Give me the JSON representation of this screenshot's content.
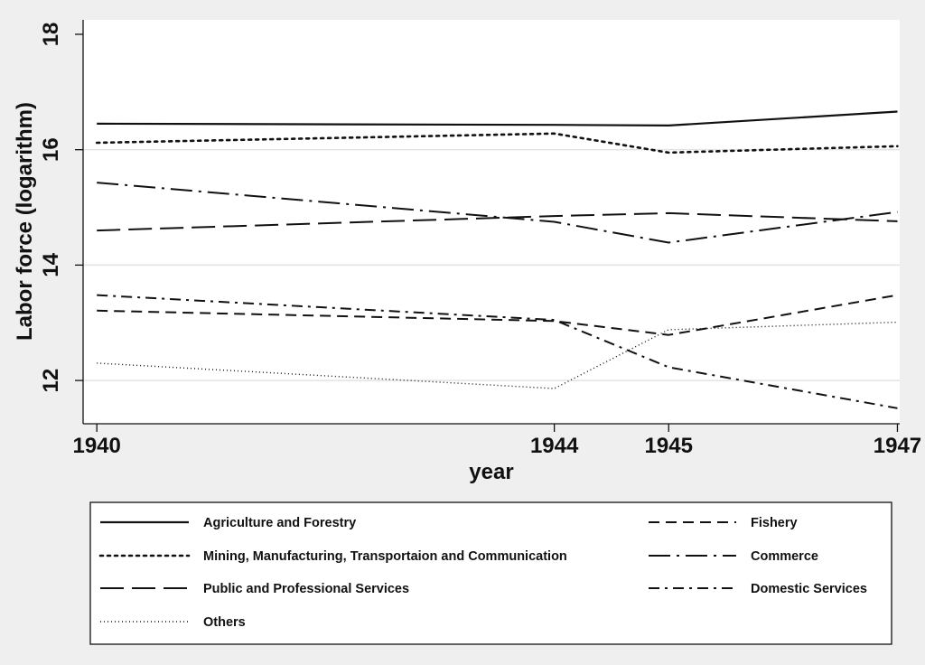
{
  "chart_data": {
    "type": "line",
    "xlabel": "year",
    "ylabel": "Labor force (logarithm)",
    "x": [
      1940,
      1944,
      1945,
      1947
    ],
    "x_ticks": [
      "1940",
      "1944",
      "1945",
      "1947"
    ],
    "y_ticks": [
      "12",
      "14",
      "16",
      "18"
    ],
    "xlim": [
      1939.88,
      1947.02
    ],
    "ylim": [
      11.25,
      18.25
    ],
    "grid": "horizontal",
    "legend_position": "bottom",
    "series": [
      {
        "name": "Agriculture and Forestry",
        "values": [
          16.45,
          16.43,
          16.42,
          16.66
        ],
        "style": "solid"
      },
      {
        "name": "Fishery",
        "values": [
          13.21,
          13.03,
          12.79,
          13.48
        ],
        "style": "dashed"
      },
      {
        "name": "Mining, Manufacturing, Transportaion and Communication",
        "values": [
          16.12,
          16.28,
          15.95,
          16.06
        ],
        "style": "dotted"
      },
      {
        "name": "Commerce",
        "values": [
          15.43,
          14.75,
          14.39,
          14.92
        ],
        "style": "longdashdot"
      },
      {
        "name": "Public and Professional Services",
        "values": [
          14.6,
          14.85,
          14.9,
          14.76
        ],
        "style": "longdash"
      },
      {
        "name": "Domestic Services",
        "values": [
          13.48,
          13.05,
          12.23,
          11.52
        ],
        "style": "dashdot"
      },
      {
        "name": "Others",
        "values": [
          12.3,
          11.86,
          12.88,
          13.01
        ],
        "style": "finedot"
      }
    ]
  }
}
